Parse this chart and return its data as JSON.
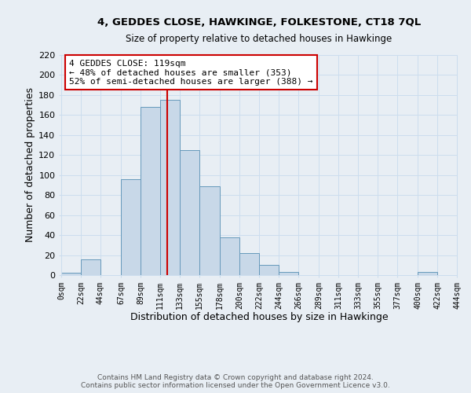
{
  "title": "4, GEDDES CLOSE, HAWKINGE, FOLKESTONE, CT18 7QL",
  "subtitle": "Size of property relative to detached houses in Hawkinge",
  "xlabel": "Distribution of detached houses by size in Hawkinge",
  "ylabel": "Number of detached properties",
  "bar_color": "#c8d8e8",
  "bar_edge_color": "#6699bb",
  "vline_x": 119,
  "vline_color": "#cc0000",
  "annotation_title": "4 GEDDES CLOSE: 119sqm",
  "annotation_line1": "← 48% of detached houses are smaller (353)",
  "annotation_line2": "52% of semi-detached houses are larger (388) →",
  "annotation_box_edge": "#cc0000",
  "bin_edges": [
    0,
    22,
    44,
    67,
    89,
    111,
    133,
    155,
    178,
    200,
    222,
    244,
    266,
    289,
    311,
    333,
    355,
    377,
    400,
    422,
    444
  ],
  "bin_counts": [
    2,
    16,
    0,
    96,
    168,
    175,
    125,
    89,
    38,
    22,
    10,
    3,
    0,
    0,
    0,
    0,
    0,
    0,
    3,
    0
  ],
  "tick_labels": [
    "0sqm",
    "22sqm",
    "44sqm",
    "67sqm",
    "89sqm",
    "111sqm",
    "133sqm",
    "155sqm",
    "178sqm",
    "200sqm",
    "222sqm",
    "244sqm",
    "266sqm",
    "289sqm",
    "311sqm",
    "333sqm",
    "355sqm",
    "377sqm",
    "400sqm",
    "422sqm",
    "444sqm"
  ],
  "ylim": [
    0,
    220
  ],
  "yticks": [
    0,
    20,
    40,
    60,
    80,
    100,
    120,
    140,
    160,
    180,
    200,
    220
  ],
  "footer1": "Contains HM Land Registry data © Crown copyright and database right 2024.",
  "footer2": "Contains public sector information licensed under the Open Government Licence v3.0.",
  "grid_color": "#ccddee",
  "fig_bg_color": "#e8eef4"
}
